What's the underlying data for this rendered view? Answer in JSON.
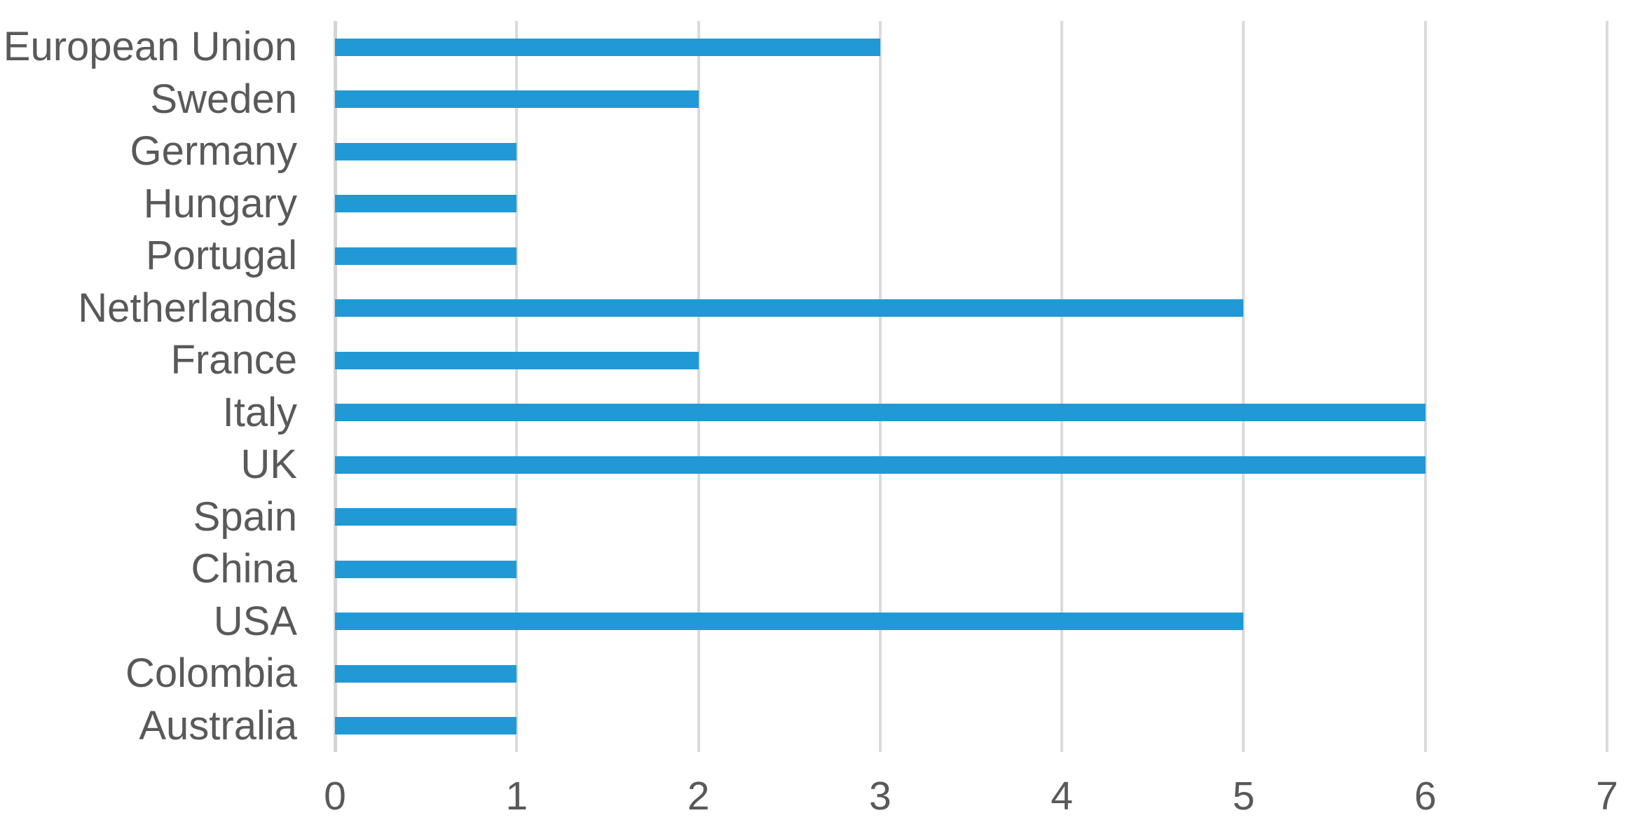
{
  "chart_data": {
    "type": "bar",
    "orientation": "horizontal",
    "title": "",
    "xlabel": "",
    "ylabel": "",
    "categories": [
      "European Union",
      "Sweden",
      "Germany",
      "Hungary",
      "Portugal",
      "Netherlands",
      "France",
      "Italy",
      "UK",
      "Spain",
      "China",
      "USA",
      "Colombia",
      "Australia"
    ],
    "values": [
      3,
      2,
      1,
      1,
      1,
      5,
      2,
      6,
      6,
      1,
      1,
      5,
      1,
      1
    ],
    "xlim": [
      0,
      7
    ],
    "x_ticks": [
      "0",
      "1",
      "2",
      "3",
      "4",
      "5",
      "6",
      "7"
    ],
    "grid": "vertical",
    "legend": "none",
    "colors": {
      "bar": "#2199D6",
      "gridline": "#DBDBDB",
      "axis_line": "#D4D4D4",
      "text": "#595959",
      "background": "#FFFFFF"
    }
  }
}
